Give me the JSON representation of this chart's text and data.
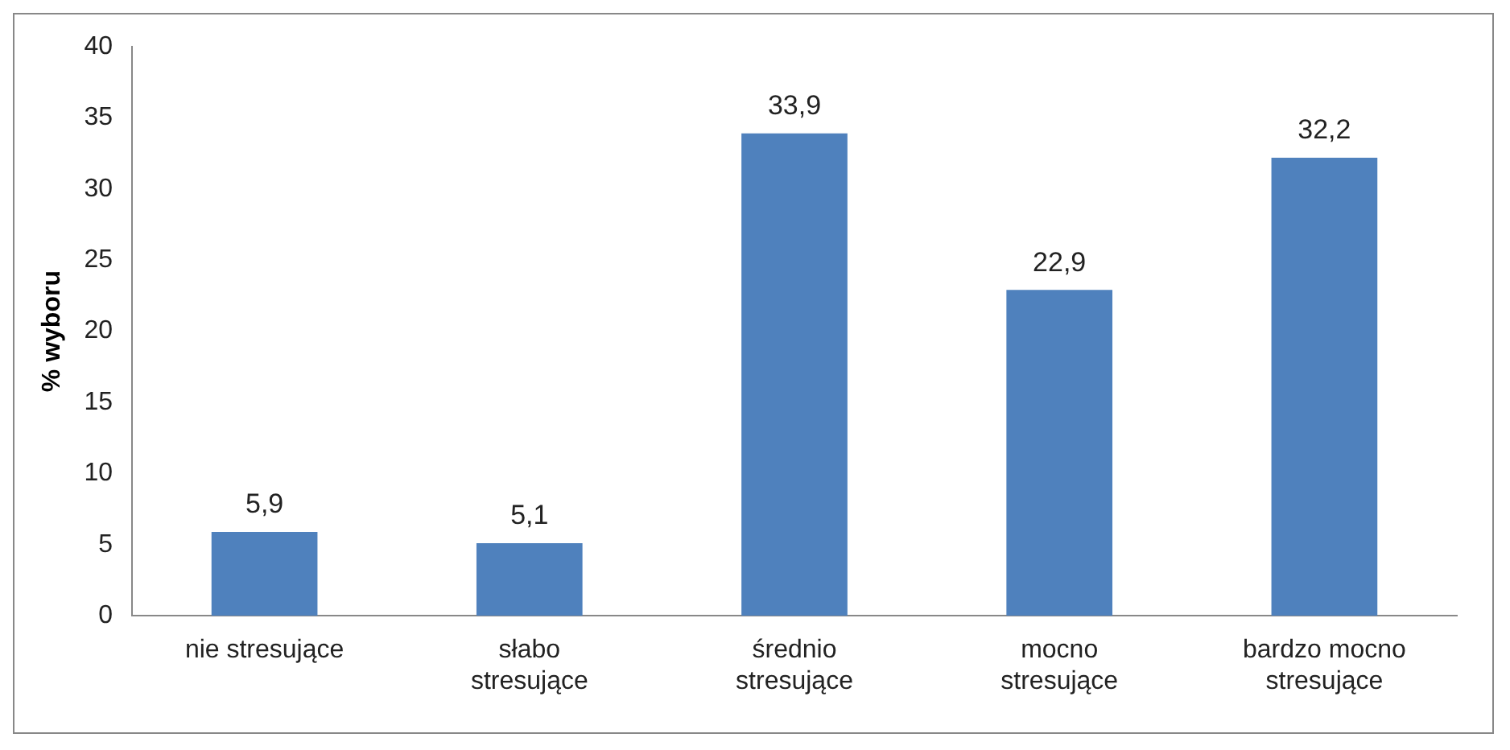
{
  "chart_data": {
    "type": "bar",
    "ylabel": "% wyboru",
    "categories": [
      "nie stresujące",
      "słabo stresujące",
      "średnio stresujące",
      "mocno stresujące",
      "bardzo mocno stresujące"
    ],
    "values": [
      5.9,
      5.1,
      33.9,
      22.9,
      32.2
    ],
    "value_labels": [
      "5,9",
      "5,1",
      "33,9",
      "22,9",
      "32,2"
    ],
    "color": "#4f81bd",
    "ylim": [
      0,
      40
    ],
    "yticks": [
      0,
      5,
      10,
      15,
      20,
      25,
      30,
      35,
      40
    ],
    "grid": false,
    "legend": false
  }
}
